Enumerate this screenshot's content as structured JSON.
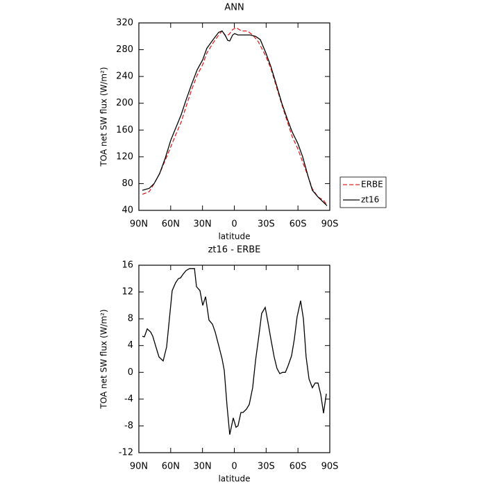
{
  "chart_data": [
    {
      "type": "line",
      "title": "ANN",
      "xlabel": "latitude",
      "ylabel": "TOA net SW flux (W/m²)",
      "xlim": [
        90,
        -90
      ],
      "xticks": [
        {
          "value": 90,
          "label": "90N"
        },
        {
          "value": 60,
          "label": "60N"
        },
        {
          "value": 30,
          "label": "30N"
        },
        0,
        {
          "value": -30,
          "label": "30S"
        },
        {
          "value": -60,
          "label": "60S"
        },
        {
          "value": -90,
          "label": "90S"
        }
      ],
      "ylim": [
        40,
        320
      ],
      "yticks": [
        40,
        80,
        120,
        160,
        200,
        240,
        280,
        320
      ],
      "legend": "right",
      "series": [
        {
          "name": "ERBE",
          "color": "#e02020",
          "dashed": true,
          "x": [
            86.7,
            80.2,
            75.6,
            70.4,
            65.1,
            59.9,
            54.7,
            50.1,
            45.5,
            40.3,
            35.0,
            29.8,
            25.9,
            20.0,
            14.7,
            11.5,
            8.2,
            4.9,
            1.6,
            -1.6,
            -6.8,
            -12.1,
            -17.3,
            -22.6,
            -29.8,
            -34.4,
            -39.6,
            -44.8,
            -50.1,
            -54.6,
            -59.9,
            -64.5,
            -69.7,
            -73.6,
            -78.9,
            -84.1,
            -87.4
          ],
          "values": [
            64,
            68,
            80,
            95,
            115,
            135,
            155,
            172,
            195,
            220,
            242,
            258,
            275,
            290,
            302,
            308,
            300,
            303,
            310,
            313,
            308,
            308,
            302,
            292,
            270,
            252,
            225,
            198,
            172,
            150,
            132,
            112,
            90,
            72,
            60,
            55,
            48
          ]
        },
        {
          "name": "zt16",
          "color": "#000000",
          "dashed": false,
          "x": [
            86.7,
            80.2,
            75.6,
            70.4,
            65.1,
            59.9,
            54.7,
            50.1,
            45.5,
            40.3,
            35.0,
            29.8,
            25.9,
            20.0,
            14.7,
            11.5,
            8.8,
            6.2,
            4.3,
            1.6,
            -0.3,
            -3.5,
            -9.5,
            -14.7,
            -20.0,
            -24.5,
            -29.8,
            -34.4,
            -39.6,
            -44.8,
            -50.1,
            -54.6,
            -59.9,
            -64.5,
            -69.7,
            -73.6,
            -78.9,
            -84.1,
            -87.4
          ],
          "values": [
            70,
            73,
            80,
            95,
            118,
            145,
            165,
            183,
            205,
            228,
            250,
            265,
            282,
            295,
            306,
            308,
            302,
            294,
            293,
            302,
            304,
            302,
            302,
            302,
            300,
            295,
            275,
            255,
            228,
            200,
            176,
            157,
            140,
            120,
            90,
            70,
            60,
            52,
            47
          ]
        }
      ]
    },
    {
      "type": "line",
      "title": "zt16 - ERBE",
      "xlabel": "latitude",
      "ylabel": "TOA net SW flux (W/m²)",
      "xlim": [
        90,
        -90
      ],
      "xticks": [
        {
          "value": 90,
          "label": "90N"
        },
        {
          "value": 60,
          "label": "60N"
        },
        {
          "value": 30,
          "label": "30N"
        },
        0,
        {
          "value": -30,
          "label": "30S"
        },
        {
          "value": -60,
          "label": "60S"
        },
        {
          "value": -90,
          "label": "90S"
        }
      ],
      "ylim": [
        -12,
        16
      ],
      "yticks": [
        -12,
        -8,
        -4,
        0,
        4,
        8,
        12,
        16
      ],
      "series": [
        {
          "color": "#000000",
          "dashed": false,
          "x": [
            86.7,
            84.8,
            82.1,
            78.8,
            76.9,
            74.3,
            71.0,
            67.1,
            63.8,
            61.2,
            58.6,
            55.3,
            52.7,
            50.7,
            48.1,
            45.5,
            42.2,
            37.6,
            35.7,
            32.4,
            29.8,
            27.1,
            23.9,
            20.6,
            18.0,
            14.7,
            11.5,
            9.5,
            6.9,
            4.3,
            1.0,
            -1.6,
            -3.5,
            -6.2,
            -8.2,
            -11.4,
            -14.1,
            -17.3,
            -20.0,
            -23.2,
            -25.8,
            -29.1,
            -31.7,
            -34.4,
            -37.6,
            -40.2,
            -42.9,
            -45.5,
            -48.1,
            -50.7,
            -54.0,
            -56.6,
            -59.2,
            -62.5,
            -65.1,
            -67.7,
            -70.4,
            -73.6,
            -76.2,
            -78.9,
            -81.5,
            -84.1,
            -86.7
          ],
          "values": [
            5.4,
            5.3,
            6.5,
            6,
            5.4,
            4,
            2.3,
            1.7,
            3.8,
            8,
            12.2,
            13.4,
            14,
            14.1,
            14.7,
            15.2,
            15.5,
            15.5,
            12.8,
            12.2,
            10,
            11.3,
            7.8,
            7.2,
            6,
            4,
            2,
            0.3,
            -5,
            -9.3,
            -6.8,
            -8.2,
            -8,
            -6,
            -6,
            -5.5,
            -4.8,
            -2.3,
            1.8,
            5.5,
            8.8,
            9.7,
            7.5,
            5,
            2.3,
            0.6,
            -0.2,
            0,
            0,
            1,
            2.5,
            5,
            8.3,
            10.7,
            8,
            2.3,
            -1,
            -2.3,
            -1.6,
            -1.6,
            -3.3,
            -6.1,
            -3.2
          ]
        }
      ]
    }
  ]
}
